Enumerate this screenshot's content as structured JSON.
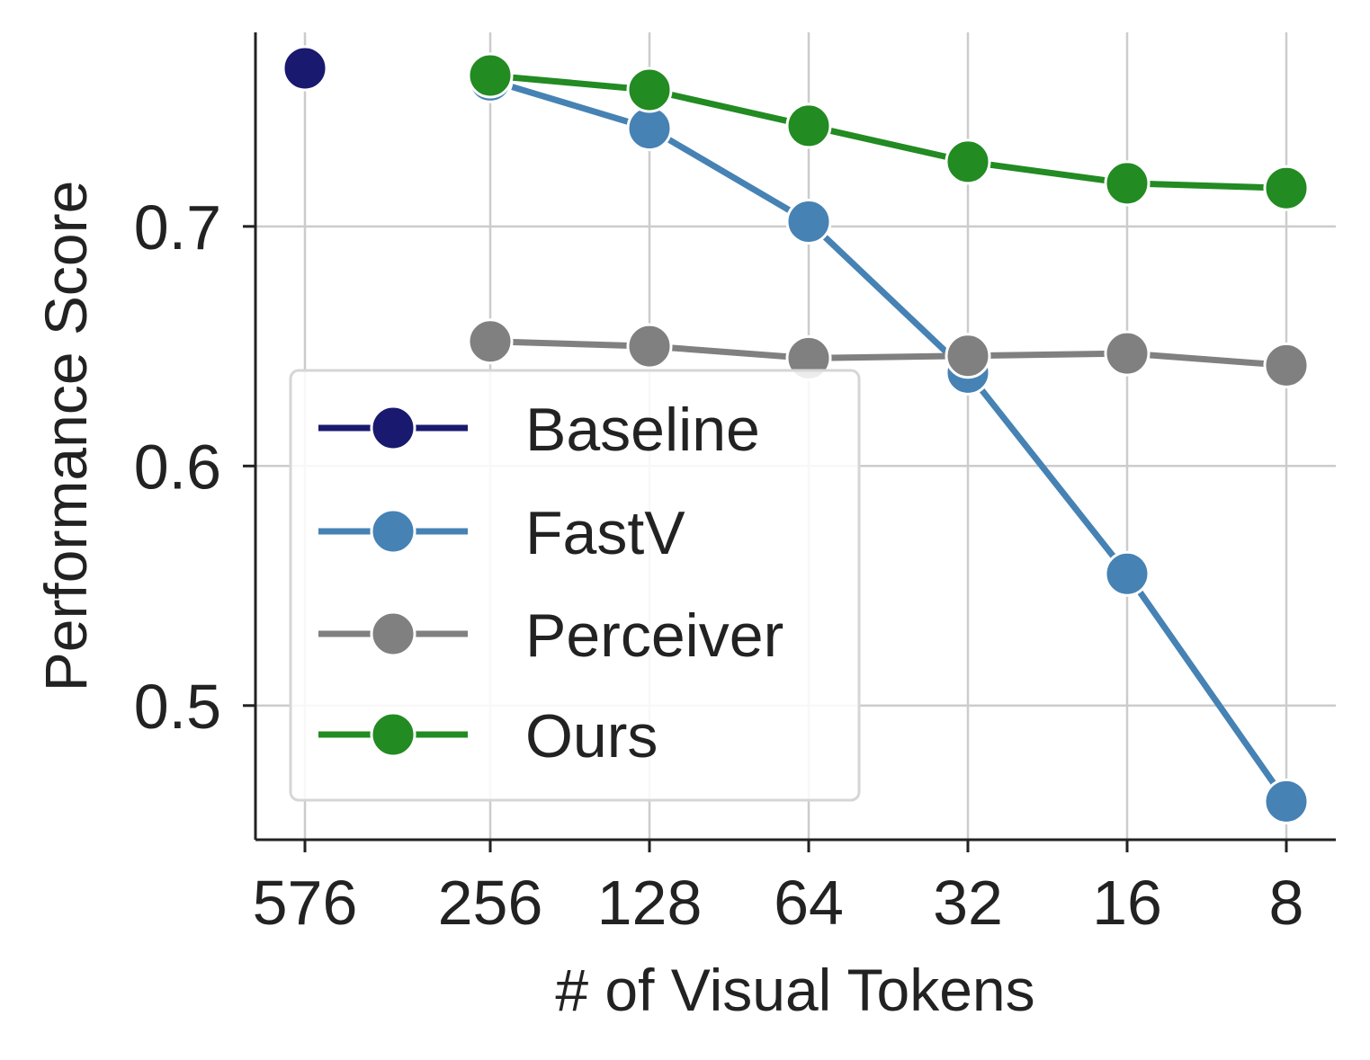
{
  "chart_data": {
    "type": "line",
    "title": "",
    "xlabel": "# of Visual Tokens",
    "ylabel": "Performance Score",
    "categories": [
      "576",
      "256",
      "128",
      "64",
      "32",
      "16",
      "8"
    ],
    "x_positions": [
      0,
      1,
      2,
      3,
      4,
      5,
      6
    ],
    "yticks": [
      "0.5",
      "0.6",
      "0.7"
    ],
    "ytick_values": [
      0.5,
      0.6,
      0.7
    ],
    "ylim": [
      0.444,
      0.781
    ],
    "grid": true,
    "legend_position": "lower-left",
    "series": [
      {
        "name": "Baseline",
        "color": "#191970",
        "x": [
          576
        ],
        "values": [
          0.766
        ]
      },
      {
        "name": "FastV",
        "color": "#4682b4",
        "x": [
          256,
          128,
          64,
          32,
          16,
          8
        ],
        "values": [
          0.761,
          0.741,
          0.702,
          0.639,
          0.555,
          0.46
        ]
      },
      {
        "name": "Perceiver",
        "color": "#808080",
        "x": [
          256,
          128,
          64,
          32,
          16,
          8
        ],
        "values": [
          0.652,
          0.65,
          0.645,
          0.646,
          0.647,
          0.642
        ]
      },
      {
        "name": "Ours",
        "color": "#228b22",
        "x": [
          256,
          128,
          64,
          32,
          16,
          8
        ],
        "values": [
          0.763,
          0.757,
          0.742,
          0.727,
          0.718,
          0.716
        ]
      }
    ]
  }
}
